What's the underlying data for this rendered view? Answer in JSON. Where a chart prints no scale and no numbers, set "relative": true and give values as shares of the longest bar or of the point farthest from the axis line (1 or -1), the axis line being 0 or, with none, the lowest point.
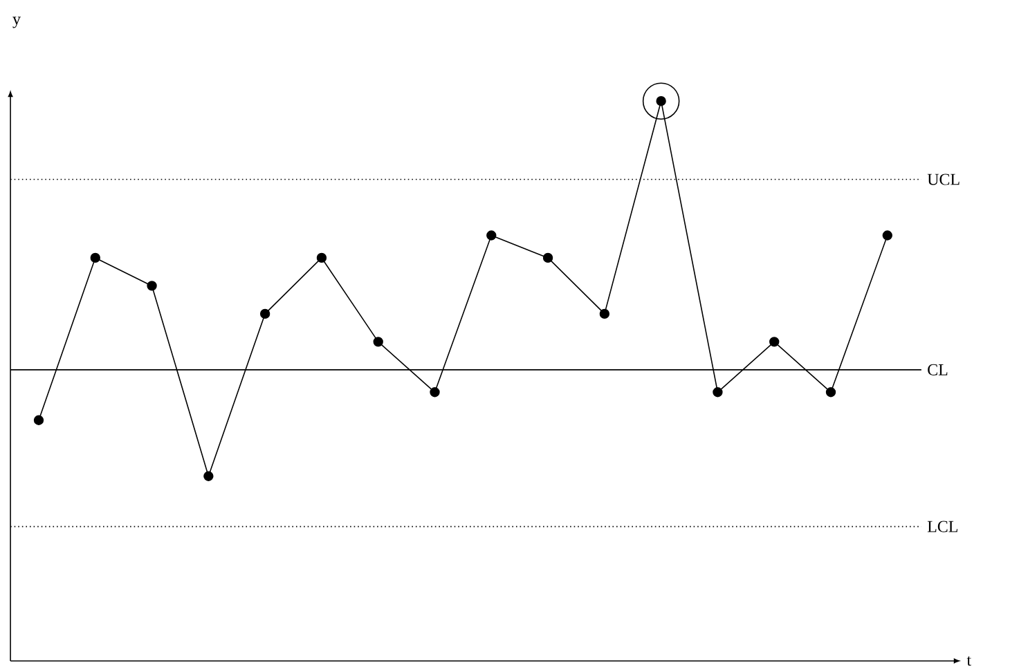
{
  "chart_data": {
    "type": "line",
    "relative": true,
    "xlabel": "t",
    "ylabel": "y",
    "categories": [
      null,
      null,
      null,
      null,
      null,
      null,
      null,
      null,
      null,
      null,
      null,
      null,
      null,
      null,
      null,
      null
    ],
    "series": [
      {
        "color": "#000000",
        "values": [
          0.43,
          0.72,
          0.67,
          0.33,
          0.62,
          0.72,
          0.57,
          0.48,
          0.76,
          0.72,
          0.62,
          1,
          0.48,
          0.57,
          0.48,
          0.76
        ]
      }
    ],
    "ref_lines": [
      {
        "axis": "y",
        "value": 0.86,
        "label": "UCL",
        "line_style": "dotted",
        "color": "#000000"
      },
      {
        "axis": "y",
        "value": 0.52,
        "label": "CL",
        "line_style": "solid",
        "color": "#000000"
      },
      {
        "axis": "y",
        "value": 0.24,
        "label": "LCL",
        "line_style": "dotted",
        "color": "#000000"
      }
    ],
    "marker": "circle",
    "line_style": "solid"
  }
}
